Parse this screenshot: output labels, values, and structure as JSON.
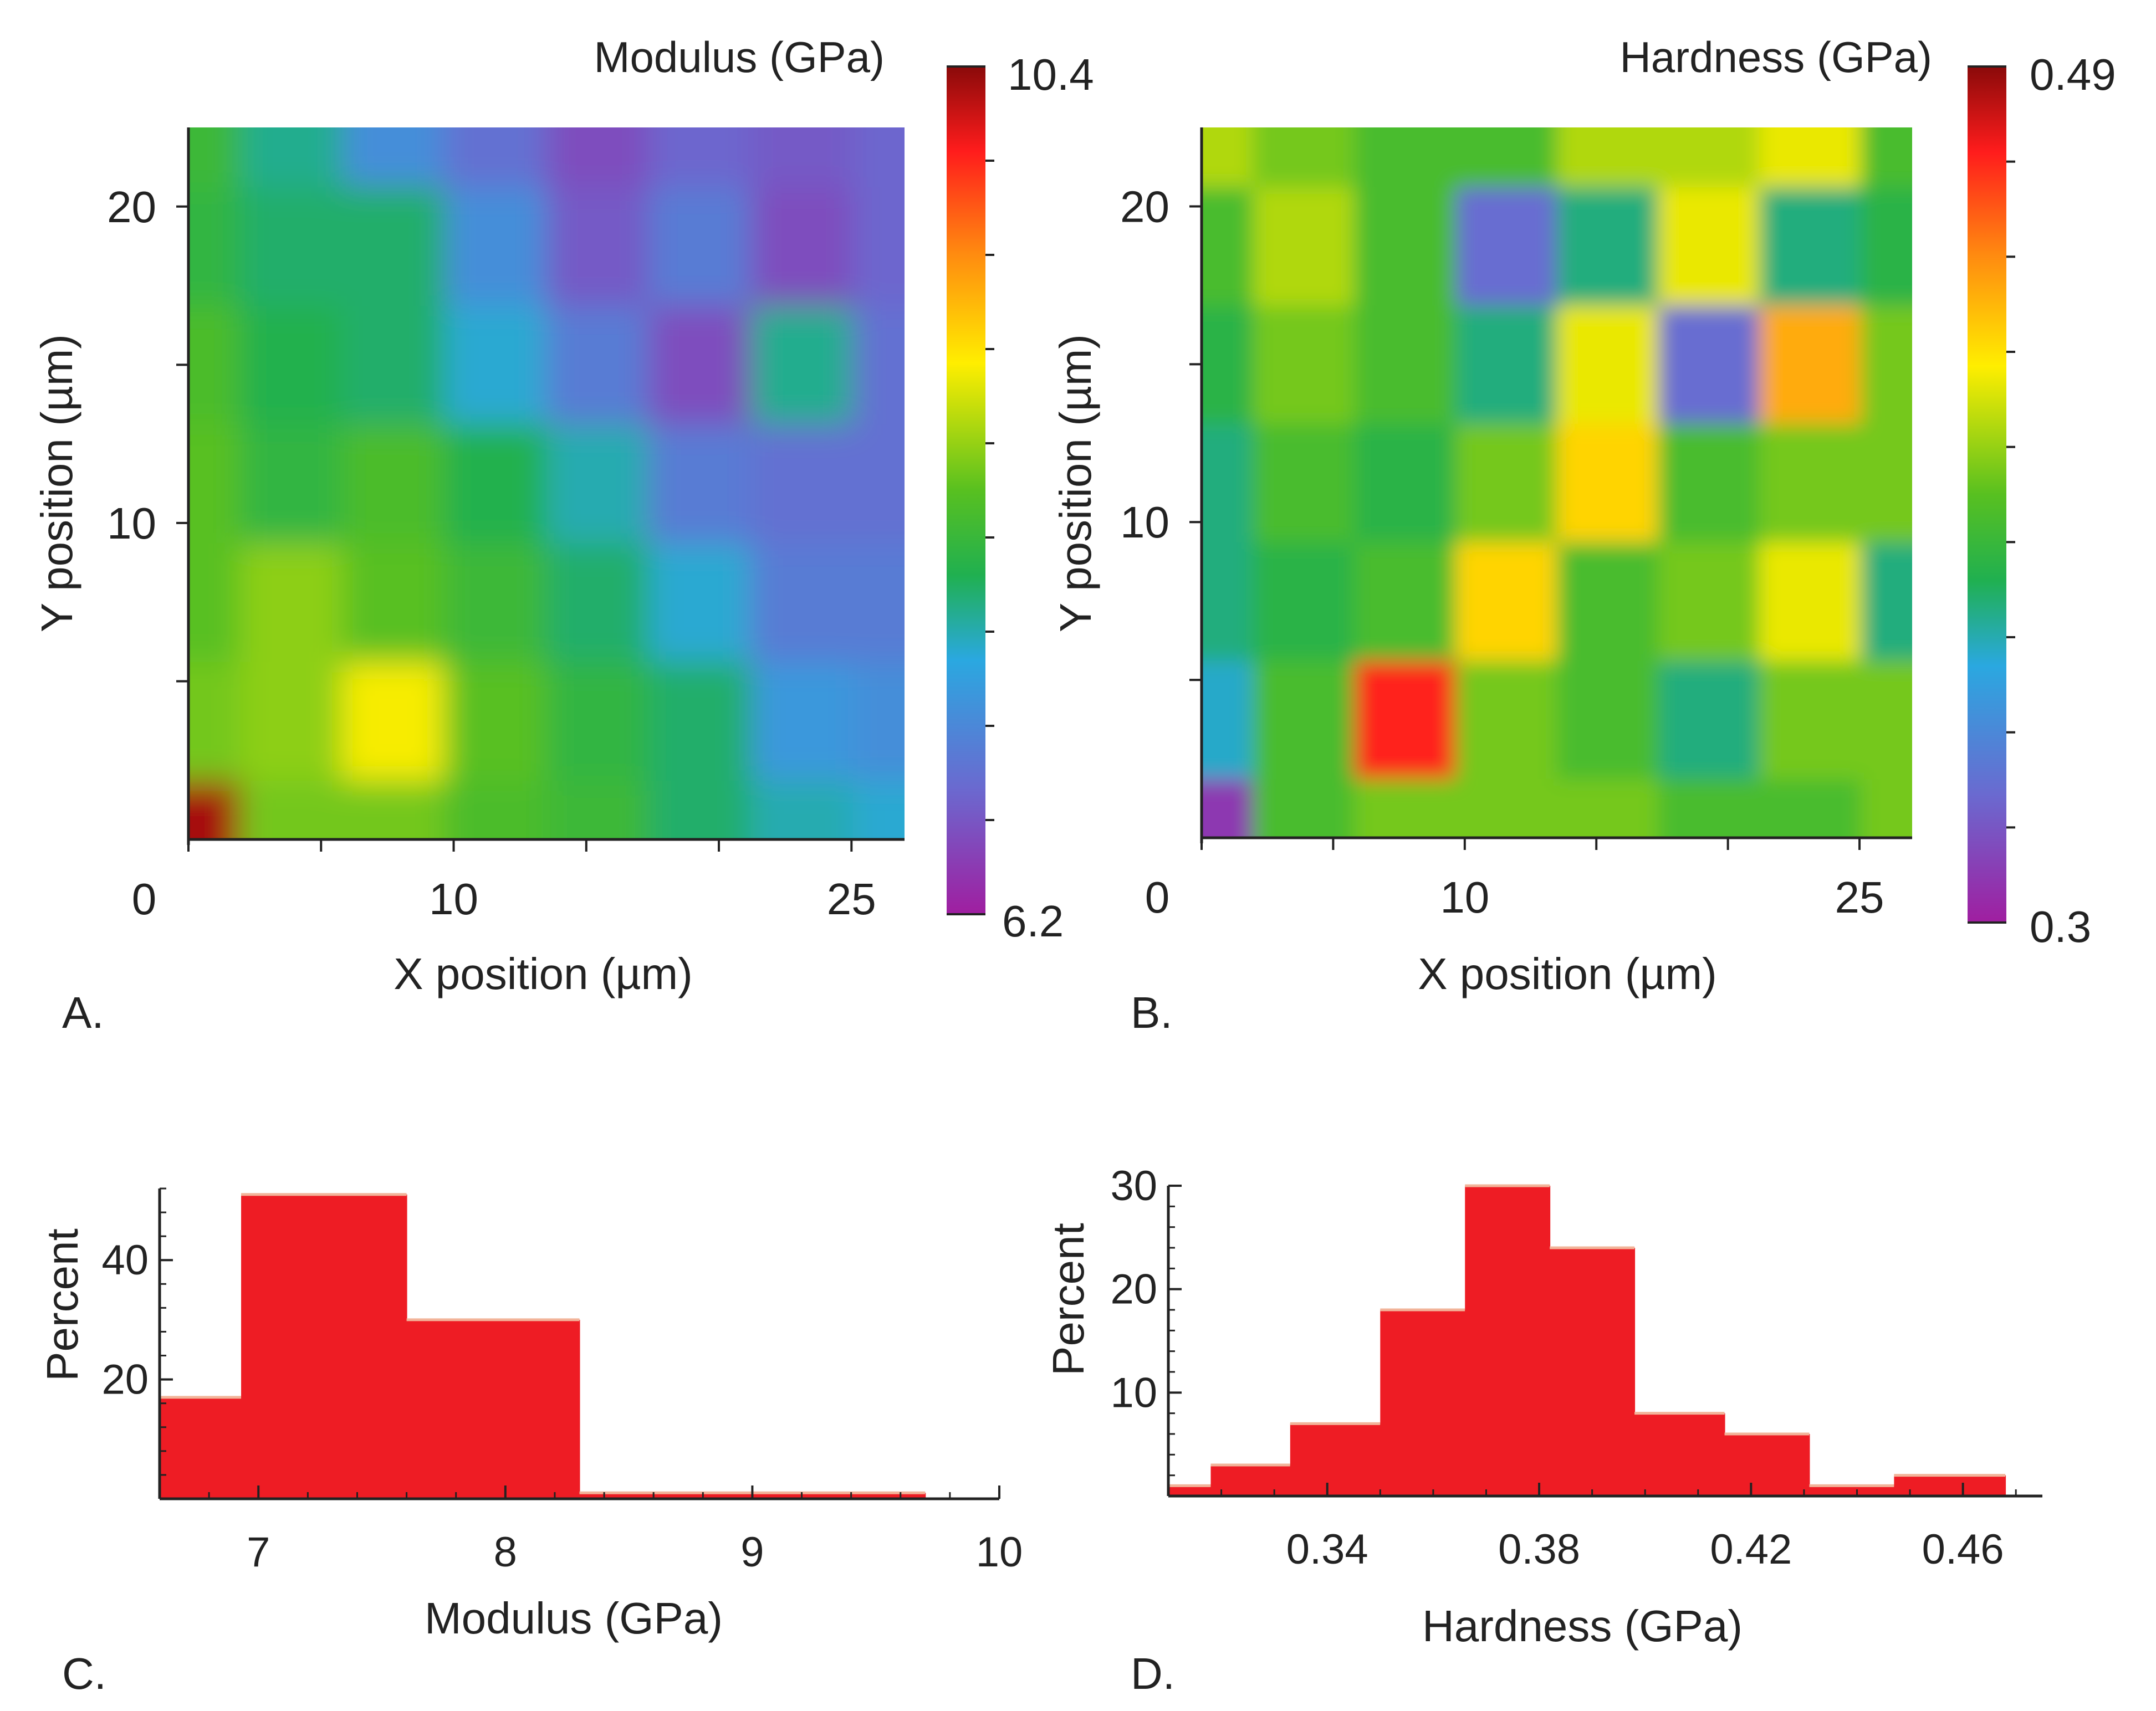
{
  "chart_data": [
    {
      "panel": "A.",
      "type": "heatmap",
      "title": "Modulus (GPa)",
      "xlabel": "X position (µm)",
      "ylabel": "Y position (µm)",
      "x_ticks": [
        0,
        10,
        25
      ],
      "y_ticks": [
        10,
        20
      ],
      "xlim": [
        0,
        27
      ],
      "ylim": [
        0,
        22.5
      ],
      "colorbar": {
        "min_label": "6.2",
        "max_label": "10.4",
        "min": 6.2,
        "max": 10.4
      },
      "grid_x": [
        0,
        3.9,
        7.7,
        11.6,
        15.4,
        19.3,
        23.1,
        27
      ],
      "grid_y": [
        0,
        3.75,
        7.5,
        11.25,
        15,
        18.75,
        22.5
      ],
      "values": [
        [
          10.3,
          8.4,
          8.4,
          8.2,
          8.1,
          7.8,
          7.6,
          7.5
        ],
        [
          8.4,
          8.5,
          8.9,
          8.3,
          8.0,
          7.8,
          7.3,
          7.2
        ],
        [
          8.3,
          8.5,
          8.3,
          8.1,
          7.8,
          7.5,
          7.0,
          7.0
        ],
        [
          8.3,
          8.0,
          8.2,
          7.9,
          7.6,
          7.0,
          6.9,
          6.9
        ],
        [
          8.2,
          7.9,
          7.8,
          7.5,
          7.0,
          6.6,
          7.7,
          6.9
        ],
        [
          8.0,
          7.8,
          7.8,
          7.2,
          6.7,
          7.0,
          6.6,
          6.8
        ],
        [
          8.1,
          7.7,
          7.2,
          6.9,
          6.6,
          6.8,
          6.7,
          6.8
        ]
      ]
    },
    {
      "panel": "B.",
      "type": "heatmap",
      "title": "Hardness (GPa)",
      "xlabel": "X position (µm)",
      "ylabel": "Y position (µm)",
      "x_ticks": [
        0,
        10,
        25
      ],
      "y_ticks": [
        10,
        20
      ],
      "xlim": [
        0,
        27
      ],
      "ylim": [
        0,
        22.5
      ],
      "colorbar": {
        "min_label": "0.3",
        "max_label": "0.49",
        "min": 0.3,
        "max": 0.49
      },
      "grid_x": [
        0,
        3.9,
        7.7,
        11.6,
        15.4,
        19.3,
        23.1,
        27
      ],
      "grid_y": [
        0,
        3.75,
        7.5,
        11.25,
        15,
        18.75,
        22.5
      ],
      "values": [
        [
          0.31,
          0.39,
          0.4,
          0.4,
          0.4,
          0.39,
          0.39,
          0.4
        ],
        [
          0.36,
          0.39,
          0.47,
          0.4,
          0.39,
          0.37,
          0.4,
          0.4
        ],
        [
          0.37,
          0.38,
          0.39,
          0.43,
          0.39,
          0.4,
          0.42,
          0.37
        ],
        [
          0.37,
          0.39,
          0.38,
          0.4,
          0.43,
          0.39,
          0.4,
          0.4
        ],
        [
          0.38,
          0.4,
          0.39,
          0.37,
          0.42,
          0.33,
          0.44,
          0.4
        ],
        [
          0.39,
          0.41,
          0.39,
          0.33,
          0.37,
          0.42,
          0.37,
          0.38
        ],
        [
          0.41,
          0.4,
          0.39,
          0.39,
          0.41,
          0.41,
          0.42,
          0.39
        ]
      ]
    },
    {
      "panel": "C.",
      "type": "bar",
      "xlabel": "Modulus (GPa)",
      "ylabel": "Percent",
      "xlim": [
        6.6,
        10
      ],
      "ylim": [
        0,
        52
      ],
      "x_ticks": [
        "7",
        "8",
        "9",
        "10"
      ],
      "y_ticks": [
        "20",
        "40"
      ],
      "bins": [
        {
          "from": 6.6,
          "to": 6.93,
          "value": 17
        },
        {
          "from": 6.93,
          "to": 7.6,
          "value": 51
        },
        {
          "from": 7.6,
          "to": 8.3,
          "value": 30
        },
        {
          "from": 8.3,
          "to": 9.7,
          "value": 1
        }
      ]
    },
    {
      "panel": "D.",
      "type": "bar",
      "xlabel": "Hardness (GPa)",
      "ylabel": "Percent",
      "xlim": [
        0.31,
        0.475
      ],
      "ylim": [
        0,
        30
      ],
      "x_ticks": [
        "0.34",
        "0.38",
        "0.42",
        "0.46"
      ],
      "y_ticks": [
        "10",
        "20",
        "30"
      ],
      "bins": [
        {
          "from": 0.31,
          "to": 0.318,
          "value": 1
        },
        {
          "from": 0.318,
          "to": 0.333,
          "value": 3
        },
        {
          "from": 0.333,
          "to": 0.35,
          "value": 7
        },
        {
          "from": 0.35,
          "to": 0.366,
          "value": 18
        },
        {
          "from": 0.366,
          "to": 0.382,
          "value": 30
        },
        {
          "from": 0.382,
          "to": 0.398,
          "value": 24
        },
        {
          "from": 0.398,
          "to": 0.415,
          "value": 8
        },
        {
          "from": 0.415,
          "to": 0.431,
          "value": 6
        },
        {
          "from": 0.431,
          "to": 0.447,
          "value": 1
        },
        {
          "from": 0.447,
          "to": 0.468,
          "value": 2
        }
      ]
    }
  ]
}
